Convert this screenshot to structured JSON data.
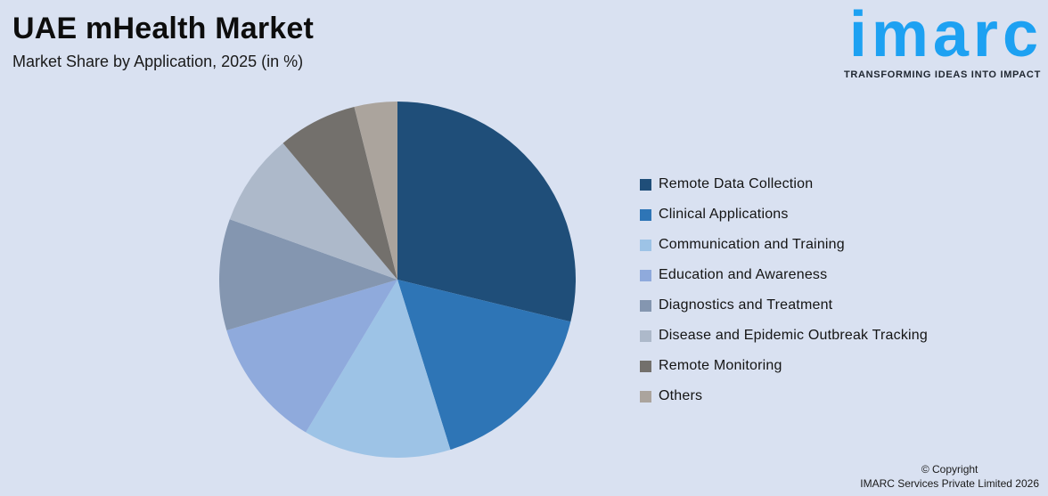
{
  "header": {
    "title": "UAE mHealth Market",
    "subtitle": "Market Share by Application, 2025 (in %)"
  },
  "brand": {
    "logo_text": "imarc",
    "tagline": "TRANSFORMING IDEAS INTO IMPACT",
    "logo_color": "#1da1f2"
  },
  "chart_data": {
    "type": "pie",
    "title": "UAE mHealth Market",
    "subtitle": "Market Share by Application, 2025 (in %)",
    "unit": "%",
    "start_angle_deg": 0,
    "direction": "clockwise",
    "slice_value_labels_shown": false,
    "legend_position": "right",
    "segments": [
      {
        "label": "Remote Data Collection",
        "value": 28.8,
        "color": "#1F4E79"
      },
      {
        "label": "Clinical Applications",
        "value": 16.4,
        "color": "#2E75B6"
      },
      {
        "label": "Communication and Training",
        "value": 13.4,
        "color": "#9DC3E6"
      },
      {
        "label": "Education and Awareness",
        "value": 11.8,
        "color": "#8FAADC"
      },
      {
        "label": "Diagnostics and Treatment",
        "value": 10.1,
        "color": "#8496B0"
      },
      {
        "label": "Disease and Epidemic Outbreak Tracking",
        "value": 8.4,
        "color": "#ADB9CA"
      },
      {
        "label": "Remote Monitoring",
        "value": 7.2,
        "color": "#73706C"
      },
      {
        "label": "Others",
        "value": 3.9,
        "color": "#ABA49D"
      }
    ]
  },
  "footer": {
    "copyright_line1": "© Copyright",
    "copyright_line2": "IMARC Services Private Limited 2026"
  }
}
